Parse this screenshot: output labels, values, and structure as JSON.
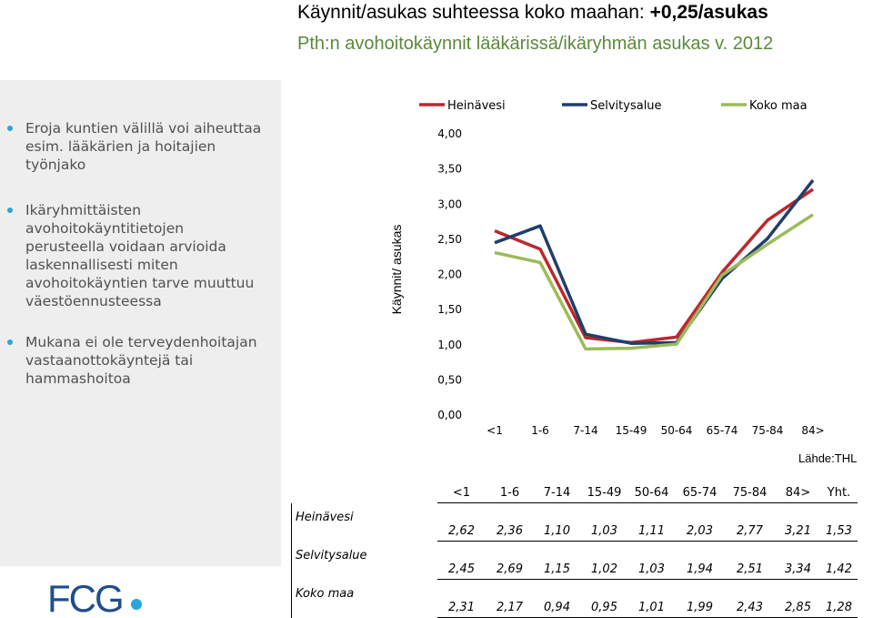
{
  "header": {
    "title_prefix": "Käynnit/asukas suhteessa koko maahan: ",
    "title_value": "+0,25/asukas",
    "subtitle": "Pth:n avohoitokäynnit lääkärissä/ikäryhmän asukas v. 2012"
  },
  "sidebar": {
    "bullets": [
      "Eroja kuntien välillä voi aiheuttaa esim. lääkärien ja hoitajien työnjako",
      "Ikäryhmittäisten avohoitokäyntitietojen perusteella voidaan arvioida laskennallisesti miten avohoitokäyntien tarve muuttuu väestöennusteessa",
      "Mukana ei ole terveydenhoitajan vastaanottokäyntejä tai hammashoitoa"
    ]
  },
  "logo": {
    "text": "FCG"
  },
  "source": "Lähde:THL",
  "chart_data": {
    "type": "line",
    "ylabel": "Käynnit/ asukas",
    "ylim": [
      0,
      4
    ],
    "yticks": [
      "0,00",
      "0,50",
      "1,00",
      "1,50",
      "2,00",
      "2,50",
      "3,00",
      "3,50",
      "4,00"
    ],
    "categories": [
      "<1",
      "1-6",
      "7-14",
      "15-49",
      "50-64",
      "65-74",
      "75-84",
      "84>"
    ],
    "legend_position": "top",
    "series": [
      {
        "name": "Heinävesi",
        "color": "#c0262d",
        "values": [
          2.62,
          2.36,
          1.1,
          1.03,
          1.11,
          2.03,
          2.77,
          3.21
        ]
      },
      {
        "name": "Selvitysalue",
        "color": "#1f3f6b",
        "values": [
          2.45,
          2.69,
          1.15,
          1.02,
          1.03,
          1.94,
          2.51,
          3.34
        ]
      },
      {
        "name": "Koko maa",
        "color": "#9bbb59",
        "values": [
          2.31,
          2.17,
          0.94,
          0.95,
          1.01,
          1.99,
          2.43,
          2.85
        ]
      }
    ]
  },
  "table": {
    "headers": [
      "<1",
      "1-6",
      "7-14",
      "15-49",
      "50-64",
      "65-74",
      "75-84",
      "84>",
      "Yht."
    ],
    "rows": [
      {
        "label": "Heinävesi",
        "values": [
          "2,62",
          "2,36",
          "1,10",
          "1,03",
          "1,11",
          "2,03",
          "2,77",
          "3,21",
          "1,53"
        ]
      },
      {
        "label": "Selvitysalue",
        "values": [
          "2,45",
          "2,69",
          "1,15",
          "1,02",
          "1,03",
          "1,94",
          "2,51",
          "3,34",
          "1,42"
        ]
      },
      {
        "label": "Koko maa",
        "values": [
          "2,31",
          "2,17",
          "0,94",
          "0,95",
          "1,01",
          "1,99",
          "2,43",
          "2,85",
          "1,28"
        ]
      }
    ]
  }
}
